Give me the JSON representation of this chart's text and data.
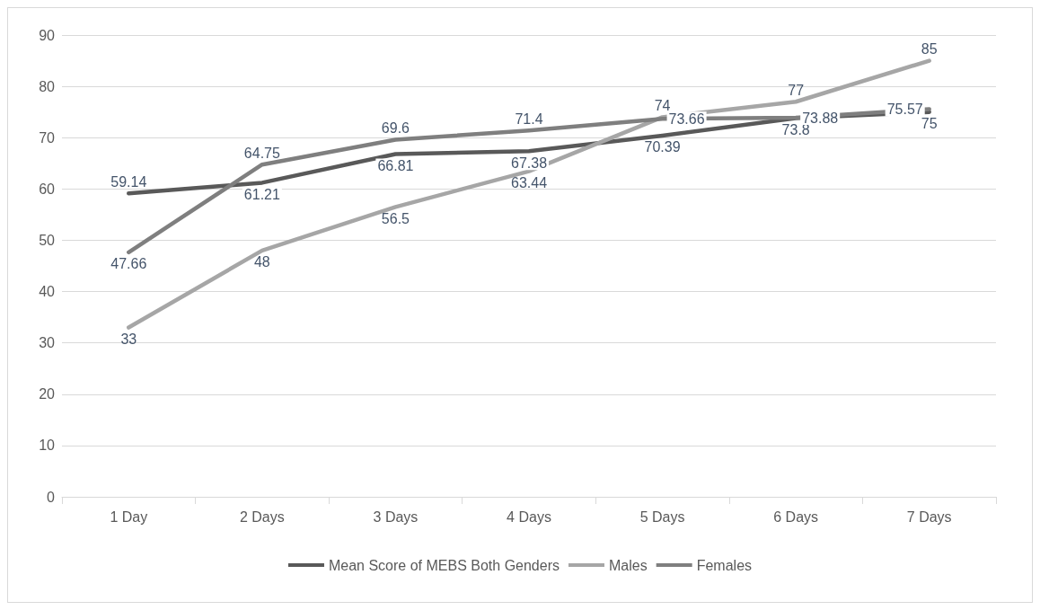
{
  "chart_data": {
    "type": "line",
    "categories": [
      "1 Day",
      "2 Days",
      "3 Days",
      "4 Days",
      "5 Days",
      "6 Days",
      "7 Days"
    ],
    "series": [
      {
        "name": "Mean Score of MEBS Both Genders",
        "color": "#595959",
        "values": [
          59.14,
          61.21,
          66.81,
          67.38,
          70.39,
          73.8,
          75
        ]
      },
      {
        "name": "Males",
        "color": "#a6a6a6",
        "values": [
          33,
          48,
          56.5,
          63.44,
          74,
          77,
          85
        ]
      },
      {
        "name": "Females",
        "color": "#7f7f7f",
        "values": [
          47.66,
          64.75,
          69.6,
          71.4,
          73.66,
          73.88,
          75.57
        ]
      }
    ],
    "ylim": [
      0,
      90
    ],
    "yticks": [
      0,
      10,
      20,
      30,
      40,
      50,
      60,
      70,
      80,
      90
    ],
    "grid": "y",
    "legend": "bottom",
    "data_labels": true,
    "marker": "none",
    "line_style": "solid"
  }
}
